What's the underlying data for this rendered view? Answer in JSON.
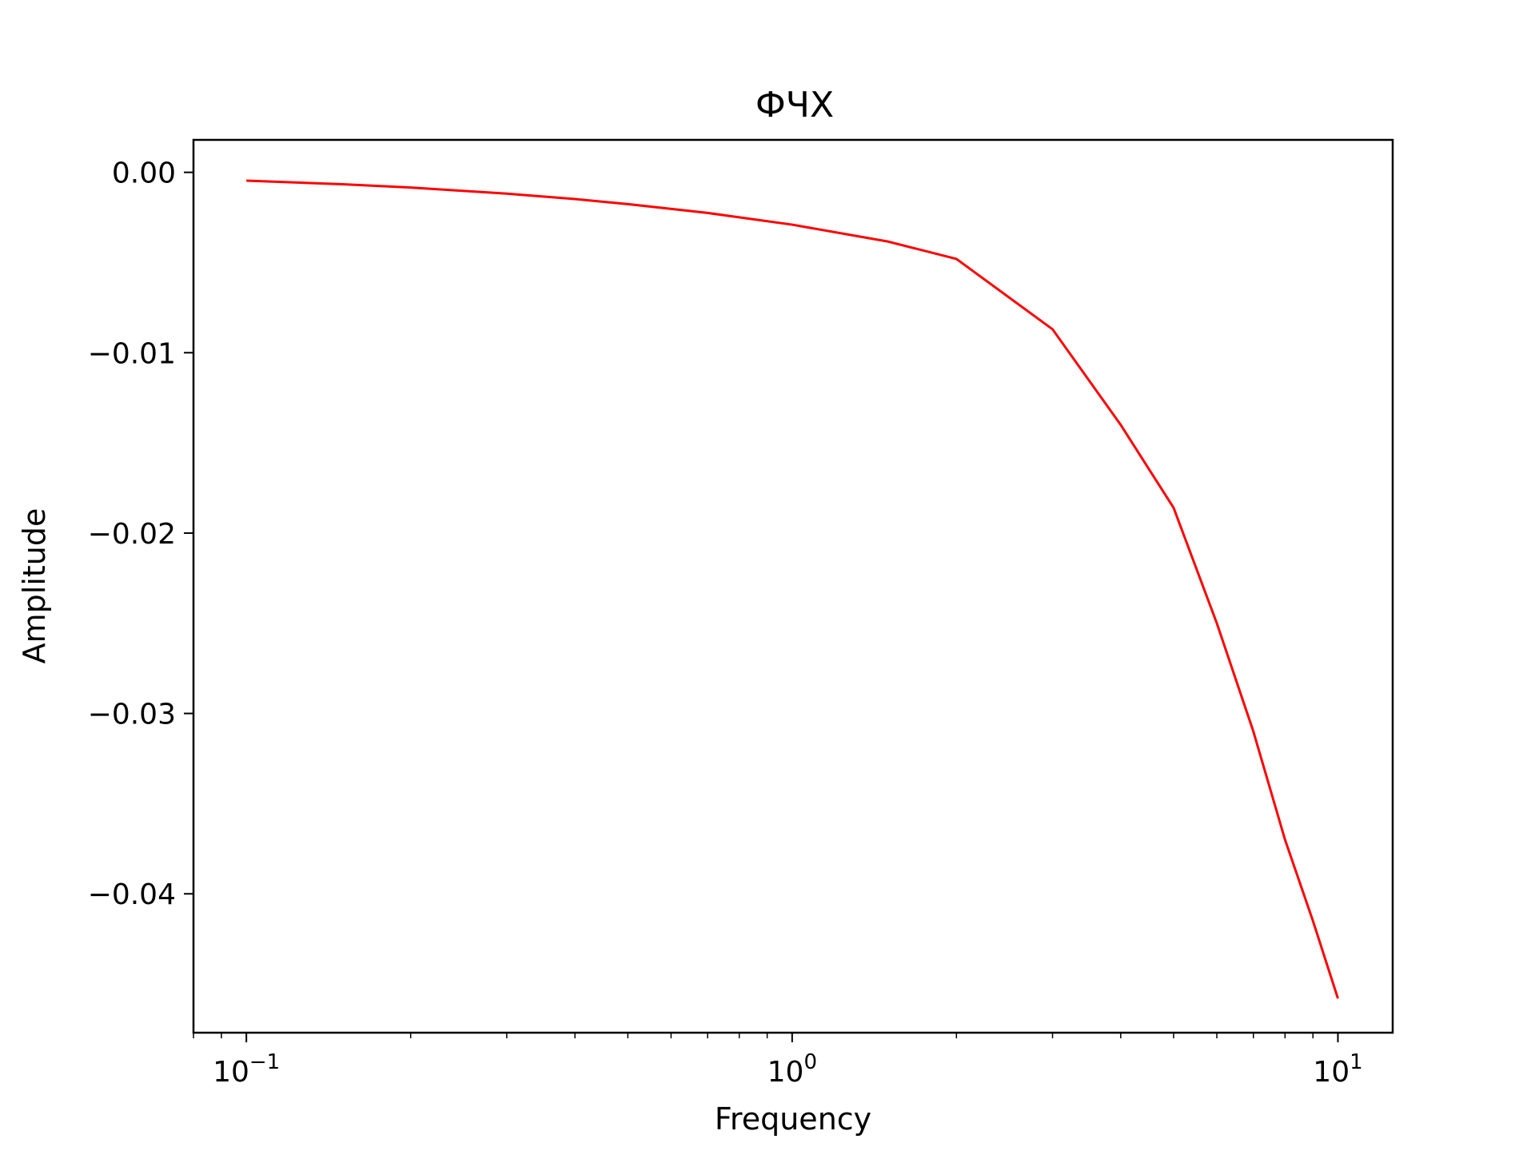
{
  "chart_data": {
    "type": "line",
    "title": "ФЧХ",
    "xlabel": "Frequency",
    "ylabel": "Amplitude",
    "xscale": "log",
    "xlim": [
      0.08,
      12.6
    ],
    "ylim": [
      -0.0477,
      0.0018
    ],
    "grid": false,
    "legend": "none",
    "x_tick_labels": [
      {
        "value": 0.1,
        "base": "10",
        "exp": "−1"
      },
      {
        "value": 1,
        "base": "10",
        "exp": "0"
      },
      {
        "value": 10,
        "base": "10",
        "exp": "1"
      }
    ],
    "y_ticks": [
      0.0,
      -0.01,
      -0.02,
      -0.03,
      -0.04
    ],
    "y_tick_labels": [
      "0.00",
      "−0.01",
      "−0.02",
      "−0.03",
      "−0.04"
    ],
    "series": [
      {
        "color": "#ff0000",
        "x": [
          0.1,
          0.15,
          0.2,
          0.3,
          0.4,
          0.5,
          0.7,
          1.0,
          1.5,
          2.0,
          3.0,
          4.0,
          5.0,
          6.0,
          7.0,
          8.0,
          9.0,
          10.0
        ],
        "y": [
          -0.00046,
          -0.00066,
          -0.00084,
          -0.00118,
          -0.00148,
          -0.00176,
          -0.00225,
          -0.0029,
          -0.00384,
          -0.0048,
          -0.0087,
          -0.014,
          -0.0186,
          -0.025,
          -0.031,
          -0.037,
          -0.0415,
          -0.0458
        ]
      }
    ]
  }
}
